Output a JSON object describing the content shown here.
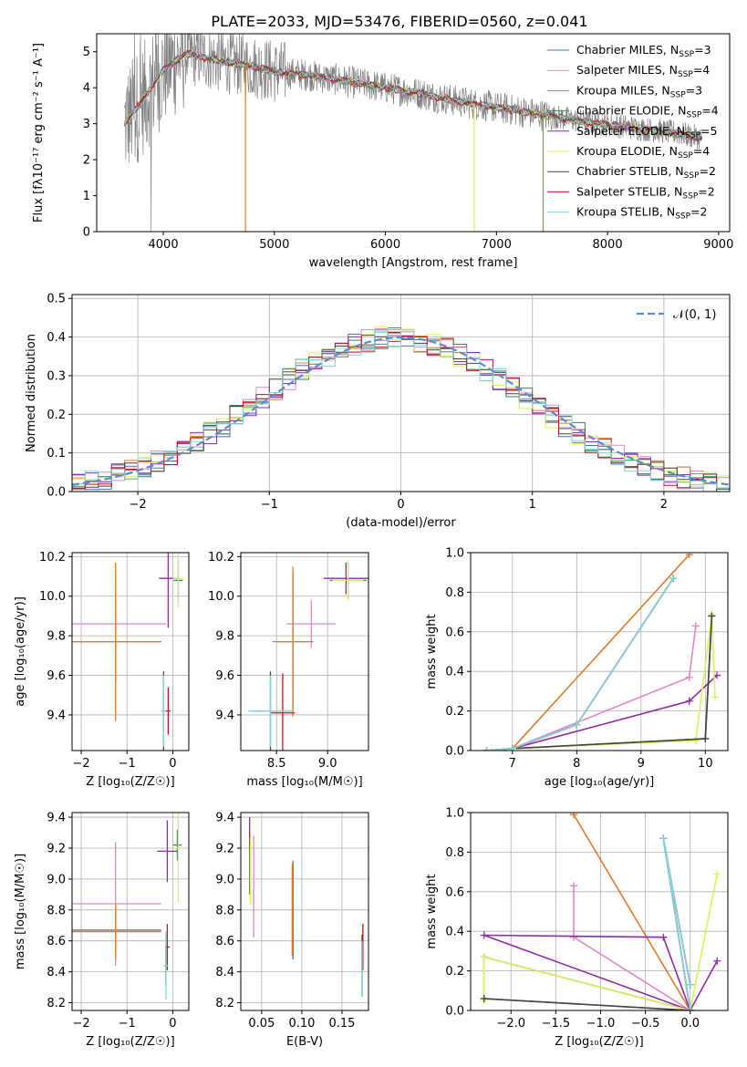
{
  "figure": {
    "title": "PLATE=2033, MJD=53476, FIBERID=0560, z=0.041"
  },
  "models": [
    {
      "name": "Chabrier MILES",
      "nssp": "3",
      "color": "#4a72b0"
    },
    {
      "name": "Salpeter MILES",
      "nssp": "4",
      "color": "#e287c4"
    },
    {
      "name": "Kroupa MILES",
      "nssp": "3",
      "color": "#e07b28"
    },
    {
      "name": "Chabrier ELODIE",
      "nssp": "4",
      "color": "#2e8b57"
    },
    {
      "name": "Salpeter ELODIE",
      "nssp": "5",
      "color": "#8e2aa6"
    },
    {
      "name": "Kroupa ELODIE",
      "nssp": "4",
      "color": "#d8f25a"
    },
    {
      "name": "Chabrier STELIB",
      "nssp": "2",
      "color": "#444444"
    },
    {
      "name": "Salpeter STELIB",
      "nssp": "2",
      "color": "#c8101f"
    },
    {
      "name": "Kroupa STELIB",
      "nssp": "2",
      "color": "#7fd6dc"
    }
  ],
  "chart_data": [
    {
      "id": "spectrum",
      "type": "line",
      "xlabel": "wavelength [Angstrom, rest frame]",
      "ylabel": "Flux [fλ10⁻¹⁷ erg cm⁻² s⁻¹ A⁻¹]",
      "xlim": [
        3400,
        9100
      ],
      "ylim": [
        0,
        5.5
      ],
      "xticks": [
        4000,
        5000,
        6000,
        7000,
        8000,
        9000
      ],
      "yticks": [
        0,
        1,
        2,
        3,
        4,
        5
      ],
      "legend_loc": "upper right",
      "data_color": "#808080",
      "continuum_points": {
        "x": [
          3650,
          3800,
          4000,
          4200,
          4500,
          4800,
          5000,
          5300,
          5600,
          6000,
          6300,
          6600,
          7000,
          7400,
          7800,
          8200,
          8600,
          8850
        ],
        "y": [
          3.0,
          3.6,
          4.5,
          4.95,
          4.75,
          4.6,
          4.45,
          4.35,
          4.2,
          4.0,
          3.85,
          3.65,
          3.45,
          3.25,
          3.05,
          2.9,
          2.75,
          2.6
        ]
      }
    },
    {
      "id": "residuals",
      "type": "histogram",
      "xlabel": "(data-model)/error",
      "ylabel": "Normed distribution",
      "xlim": [
        -2.5,
        2.5
      ],
      "ylim": [
        0,
        0.51
      ],
      "xticks": [
        -2,
        -1,
        0,
        1,
        2
      ],
      "yticks": [
        0,
        0.1,
        0.2,
        0.3,
        0.4,
        0.5
      ],
      "reference_label": "𝒩(0, 1)",
      "reference_color": "#5a8ad6",
      "bin_width": 0.1,
      "bin_start": -2.5
    },
    {
      "id": "age_vs_Z",
      "type": "scatter",
      "xlabel": "Z [log₁₀(Z/Z☉)]",
      "ylabel": "age  [log₁₀(age/yr)]",
      "xlim": [
        -2.2,
        0.35
      ],
      "ylim": [
        9.22,
        10.22
      ],
      "xticks": [
        -2,
        -1,
        0
      ],
      "yticks": [
        9.4,
        9.6,
        9.8,
        10.0,
        10.2
      ]
    },
    {
      "id": "age_vs_mass",
      "type": "scatter",
      "xlabel": "mass [log₁₀(M/M☉)]",
      "ylabel": "",
      "xlim": [
        8.15,
        9.4
      ],
      "ylim": [
        9.22,
        10.22
      ],
      "xticks": [
        8.5,
        9.0
      ],
      "yticks": [
        9.4,
        9.6,
        9.8,
        10.0,
        10.2
      ]
    },
    {
      "id": "mass_weight_vs_age",
      "type": "line",
      "xlabel": "age  [log₁₀(age/yr)]",
      "ylabel": "mass weight",
      "xlim": [
        6.35,
        10.35
      ],
      "ylim": [
        0,
        1.0
      ],
      "xticks": [
        6,
        7,
        8,
        9,
        10
      ],
      "yticks": [
        0,
        0.2,
        0.4,
        0.6,
        0.8,
        1.0
      ]
    },
    {
      "id": "mass_vs_Z",
      "type": "scatter",
      "xlabel": "Z [log₁₀(Z/Z☉)]",
      "ylabel": "mass [log₁₀(M/M☉)]",
      "xlim": [
        -2.2,
        0.35
      ],
      "ylim": [
        8.15,
        9.43
      ],
      "xticks": [
        -2,
        -1,
        0
      ],
      "yticks": [
        8.2,
        8.4,
        8.6,
        8.8,
        9.0,
        9.2,
        9.4
      ]
    },
    {
      "id": "mass_vs_ebv",
      "type": "scatter",
      "xlabel": "E(B-V)",
      "ylabel": "",
      "xlim": [
        0.024,
        0.183
      ],
      "ylim": [
        8.15,
        9.43
      ],
      "xticks": [
        0.05,
        0.1,
        0.15
      ],
      "yticks": [
        8.2,
        8.4,
        8.6,
        8.8,
        9.0,
        9.2,
        9.4
      ]
    },
    {
      "id": "mass_weight_vs_Z",
      "type": "line",
      "xlabel": "Z [log₁₀(Z/Z☉)]",
      "ylabel": "mass weight",
      "xlim": [
        -2.45,
        0.42
      ],
      "ylim": [
        0,
        1.0
      ],
      "xticks": [
        -2.0,
        -1.5,
        -1.0,
        -0.5,
        0.0
      ],
      "yticks": [
        0,
        0.2,
        0.4,
        0.6,
        0.8,
        1.0
      ]
    }
  ],
  "points": {
    "age_Z": [
      {
        "m": 0,
        "x": -1.25,
        "y": 9.77,
        "xerr": 1.0,
        "yerr": 0.2
      },
      {
        "m": 1,
        "x": -1.25,
        "y": 9.86,
        "xerr": 1.1,
        "yerr": 0.3
      },
      {
        "m": 2,
        "x": -1.25,
        "y": 9.77,
        "xerr": 1.0,
        "yerr": 0.4
      },
      {
        "m": 3,
        "x": 0.12,
        "y": 10.08,
        "xerr": 0.1,
        "yerr": 0.1
      },
      {
        "m": 4,
        "x": -0.1,
        "y": 10.09,
        "xerr": 0.2,
        "yerr": 0.25
      },
      {
        "m": 5,
        "x": 0.12,
        "y": 10.09,
        "xerr": 0.12,
        "yerr": 0.15
      },
      {
        "m": 6,
        "x": -0.2,
        "y": 9.42,
        "xerr": 0.05,
        "yerr": 0.2
      },
      {
        "m": 7,
        "x": -0.1,
        "y": 9.42,
        "xerr": 0.05,
        "yerr": 0.12
      },
      {
        "m": 8,
        "x": -0.2,
        "y": 9.42,
        "xerr": 0.05,
        "yerr": 0.18
      }
    ],
    "age_mass": [
      {
        "m": 0,
        "x": 8.66,
        "y": 9.77,
        "xerr": 0.15,
        "yerr": 0.35
      },
      {
        "m": 1,
        "x": 8.84,
        "y": 9.86,
        "xerr": 0.24,
        "yerr": 0.12
      },
      {
        "m": 2,
        "x": 8.66,
        "y": 9.77,
        "xerr": 0.2,
        "yerr": 0.38
      },
      {
        "m": 3,
        "x": 9.2,
        "y": 10.08,
        "xerr": 0.18,
        "yerr": 0.09
      },
      {
        "m": 4,
        "x": 9.18,
        "y": 10.09,
        "xerr": 0.22,
        "yerr": 0.08
      },
      {
        "m": 5,
        "x": 9.2,
        "y": 10.08,
        "xerr": 0.15,
        "yerr": 0.1
      },
      {
        "m": 6,
        "x": 8.44,
        "y": 9.42,
        "xerr": 0.2,
        "yerr": 0.2
      },
      {
        "m": 7,
        "x": 8.56,
        "y": 9.41,
        "xerr": 0.12,
        "yerr": 0.2
      },
      {
        "m": 8,
        "x": 8.44,
        "y": 9.42,
        "xerr": 0.22,
        "yerr": 0.18
      }
    ],
    "mass_Z": [
      {
        "m": 0,
        "x": -1.25,
        "y": 8.67,
        "xerr": 1.0,
        "yerr": 0.15
      },
      {
        "m": 1,
        "x": -1.25,
        "y": 8.84,
        "xerr": 1.0,
        "yerr": 0.4
      },
      {
        "m": 2,
        "x": -1.25,
        "y": 8.66,
        "xerr": 1.0,
        "yerr": 0.18
      },
      {
        "m": 3,
        "x": 0.1,
        "y": 9.22,
        "xerr": 0.1,
        "yerr": 0.1
      },
      {
        "m": 4,
        "x": -0.12,
        "y": 9.18,
        "xerr": 0.22,
        "yerr": 0.2
      },
      {
        "m": 5,
        "x": 0.12,
        "y": 9.2,
        "xerr": 0.1,
        "yerr": 0.35
      },
      {
        "m": 6,
        "x": -0.15,
        "y": 8.44,
        "xerr": 0.05,
        "yerr": 0.12
      },
      {
        "m": 7,
        "x": -0.12,
        "y": 8.56,
        "xerr": 0.05,
        "yerr": 0.15
      },
      {
        "m": 8,
        "x": -0.15,
        "y": 8.44,
        "xerr": 0.05,
        "yerr": 0.22
      }
    ],
    "mass_ebv": [
      {
        "m": 0,
        "x": 0.089,
        "y": 8.8,
        "yerr": 0.32
      },
      {
        "m": 1,
        "x": 0.04,
        "y": 8.95,
        "yerr": 0.33
      },
      {
        "m": 2,
        "x": 0.088,
        "y": 8.8,
        "yerr": 0.3
      },
      {
        "m": 3,
        "x": 0.035,
        "y": 9.1,
        "yerr": 0.2
      },
      {
        "m": 4,
        "x": 0.035,
        "y": 9.3,
        "yerr": 0.1
      },
      {
        "m": 5,
        "x": 0.036,
        "y": 9.05,
        "yerr": 0.22
      },
      {
        "m": 6,
        "x": 0.175,
        "y": 8.44,
        "yerr": 0.2
      },
      {
        "m": 7,
        "x": 0.176,
        "y": 8.56,
        "yerr": 0.15
      },
      {
        "m": 8,
        "x": 0.175,
        "y": 8.42,
        "yerr": 0.18
      }
    ],
    "mw_age": [
      {
        "m": 0,
        "x": [
          6.6,
          7.0,
          8.0,
          9.5
        ],
        "y": [
          0.0,
          0.01,
          0.13,
          0.87
        ]
      },
      {
        "m": 1,
        "x": [
          6.6,
          7.0,
          9.75,
          9.85
        ],
        "y": [
          0.0,
          0.01,
          0.37,
          0.63
        ]
      },
      {
        "m": 2,
        "x": [
          6.6,
          7.0,
          9.75
        ],
        "y": [
          0.0,
          0.01,
          0.99
        ]
      },
      {
        "m": 3,
        "x": [
          6.6,
          7.0,
          10.0,
          10.1
        ],
        "y": [
          0.0,
          0.01,
          0.06,
          0.68
        ]
      },
      {
        "m": 4,
        "x": [
          6.6,
          7.0,
          9.75,
          10.18
        ],
        "y": [
          0.0,
          0.01,
          0.25,
          0.38
        ]
      },
      {
        "m": 5,
        "x": [
          6.6,
          7.0,
          9.85,
          10.1,
          10.15
        ],
        "y": [
          0.0,
          0.01,
          0.05,
          0.69,
          0.27
        ]
      },
      {
        "m": 6,
        "x": [
          6.6,
          7.0,
          10.0,
          10.1
        ],
        "y": [
          0.0,
          0.01,
          0.06,
          0.68
        ]
      },
      {
        "m": 7,
        "x": [
          6.6,
          7.0,
          8.0,
          9.5
        ],
        "y": [
          0.0,
          0.01,
          0.13,
          0.87
        ]
      },
      {
        "m": 8,
        "x": [
          6.6,
          7.0,
          8.0,
          9.5
        ],
        "y": [
          0.0,
          0.01,
          0.13,
          0.87
        ]
      }
    ],
    "mw_Z": [
      {
        "m": 0,
        "x": [
          0.0,
          -0.3,
          0.0
        ],
        "y": [
          0.0,
          0.87,
          0.13
        ]
      },
      {
        "m": 1,
        "x": [
          0.0,
          -1.3,
          -1.3
        ],
        "y": [
          0.0,
          0.37,
          0.63
        ]
      },
      {
        "m": 2,
        "x": [
          0.0,
          -1.3
        ],
        "y": [
          0.0,
          0.99
        ]
      },
      {
        "m": 3,
        "x": [
          0.0,
          -2.3,
          -2.3,
          0.0
        ],
        "y": [
          0.0,
          0.06,
          0.27,
          0.0
        ]
      },
      {
        "m": 4,
        "x": [
          0.0,
          -2.3,
          -0.3,
          0.0,
          0.3
        ],
        "y": [
          0.0,
          0.38,
          0.37,
          0.0,
          0.25
        ]
      },
      {
        "m": 5,
        "x": [
          0.0,
          0.3,
          0.0,
          -2.3,
          -2.3
        ],
        "y": [
          0.0,
          0.69,
          0.0,
          0.27,
          0.05
        ]
      },
      {
        "m": 6,
        "x": [
          0.0,
          -2.3
        ],
        "y": [
          0.0,
          0.06
        ]
      },
      {
        "m": 7,
        "x": [
          0.0,
          -0.3,
          0.0
        ],
        "y": [
          0.0,
          0.87,
          0.13
        ]
      },
      {
        "m": 8,
        "x": [
          0.0,
          -0.3,
          0.0
        ],
        "y": [
          0.0,
          0.87,
          0.13
        ]
      }
    ]
  }
}
